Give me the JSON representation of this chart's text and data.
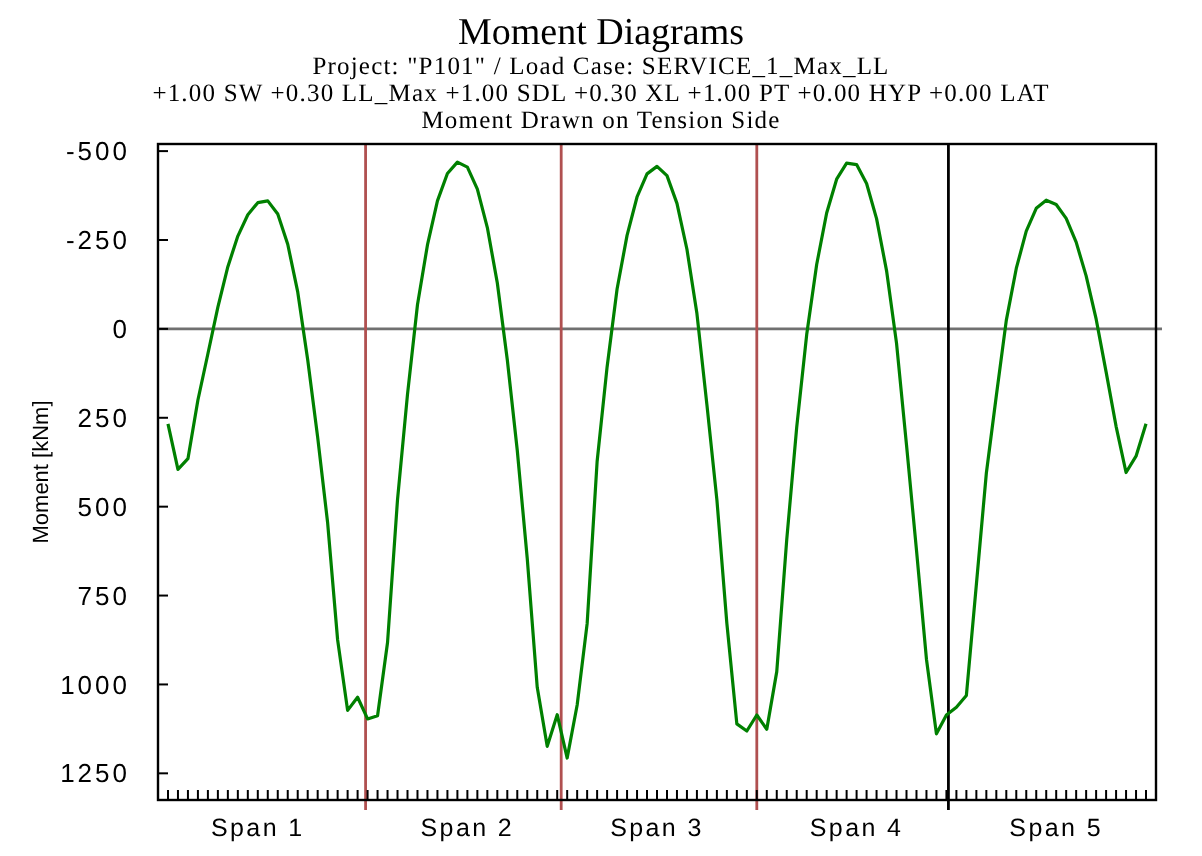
{
  "chart_data": {
    "type": "line",
    "title": "Moment Diagrams",
    "subtitle": "Project: \"P101\" / Load Case: SERVICE_1_Max_LL\n+1.00 SW +0.30 LL_Max +1.00 SDL +0.30 XL +1.00 PT +0.00 HYP +0.00 LAT\nMoment Drawn on Tension Side",
    "ylabel": "Moment [kNm]",
    "categories": [
      null,
      null,
      null,
      null,
      null,
      null,
      null,
      null,
      null,
      null,
      "Span 1",
      null,
      null,
      null,
      null,
      null,
      null,
      null,
      null,
      null,
      null,
      null,
      null,
      null,
      null,
      null,
      null,
      null,
      null,
      null,
      null,
      "Span 2",
      null,
      null,
      null,
      null,
      null,
      null,
      null,
      null,
      null,
      null,
      null,
      null,
      null,
      null,
      null,
      null,
      null,
      null,
      "Span 3",
      null,
      null,
      null,
      null,
      null,
      null,
      null,
      null,
      null,
      null,
      null,
      null,
      null,
      null,
      null,
      null,
      null,
      null,
      null,
      "Span 4",
      null,
      null,
      null,
      null,
      null,
      null,
      null,
      null,
      null,
      null,
      null,
      null,
      null,
      null,
      null,
      null,
      null,
      null,
      null,
      "Span 5",
      null,
      null,
      null,
      null,
      null,
      null,
      null,
      null,
      null,
      null
    ],
    "ylim": [
      1325,
      -520
    ],
    "yticks": [
      -500,
      -250,
      0,
      250,
      500,
      750,
      1000,
      1250
    ],
    "marker": "none",
    "line_style": "solid",
    "ref_lines": [
      {
        "axis": "y",
        "value": 0,
        "color": "#707070"
      }
    ],
    "series": [
      {
        "color": "#008000",
        "values": [
          null,
          267,
          395,
          365,
          200,
          70,
          -61,
          -175,
          -261,
          -321,
          -355,
          -360,
          -323,
          -238,
          -104,
          87,
          305,
          546,
          875,
          1073,
          1036,
          1097,
          1088,
          882,
          480,
          184,
          -68,
          -236,
          -360,
          -437,
          -469,
          -455,
          -393,
          -285,
          -129,
          87,
          342,
          646,
          1008,
          1174,
          1085,
          1207,
          1058,
          829,
          373,
          107,
          -112,
          -263,
          -371,
          -436,
          -457,
          -431,
          -353,
          -224,
          -43,
          213,
          480,
          828,
          1111,
          1131,
          1086,
          1126,
          964,
          593,
          276,
          16,
          -181,
          -326,
          -421,
          -466,
          -462,
          -409,
          -310,
          -164,
          40,
          326,
          622,
          929,
          1139,
          1086,
          1064,
          1031,
          719,
          406,
          188,
          -24,
          -170,
          -275,
          -339,
          -362,
          -350,
          -311,
          -244,
          -149,
          -28,
          121,
          274,
          404,
          358,
          267,
          null
        ]
      }
    ]
  }
}
